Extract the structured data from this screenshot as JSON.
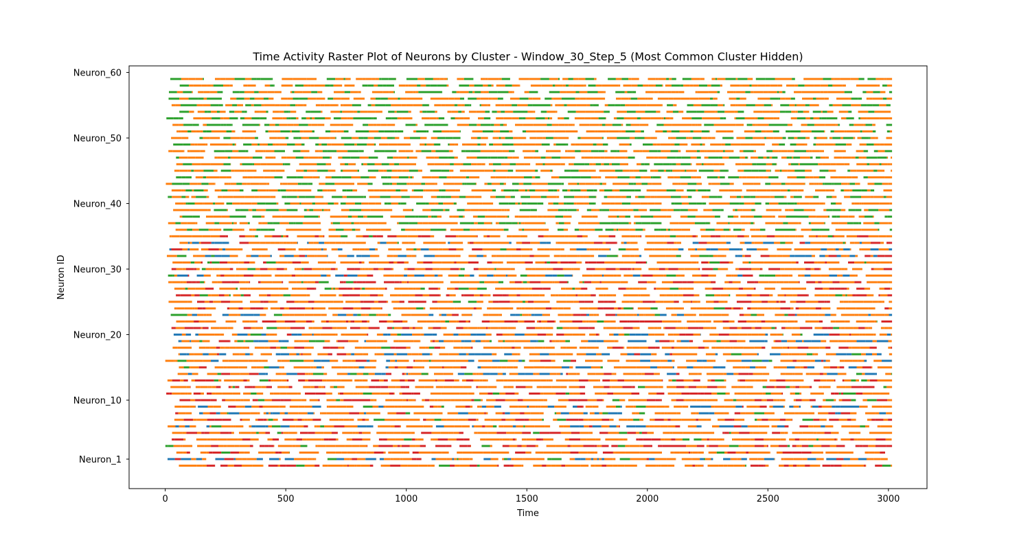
{
  "chart_data": {
    "type": "raster",
    "title": "Time Activity Raster Plot of Neurons by Cluster - Window_30_Step_5 (Most Common Cluster Hidden)",
    "xlabel": "Time",
    "ylabel": "Neuron ID",
    "xlim": [
      -150,
      3160
    ],
    "ylim": [
      -3.5,
      61
    ],
    "x_ticks": [
      0,
      500,
      1000,
      1500,
      2000,
      2500,
      3000
    ],
    "x_tick_labels": [
      "0",
      "500",
      "1000",
      "1500",
      "2000",
      "2500",
      "3000"
    ],
    "y_ticks": [
      1,
      10,
      20,
      30,
      40,
      50,
      60
    ],
    "y_tick_labels": [
      "Neuron_1",
      "Neuron_10",
      "Neuron_20",
      "Neuron_30",
      "Neuron_40",
      "Neuron_50",
      "Neuron_60"
    ],
    "neuron_rows": {
      "first": 0,
      "last": 59
    },
    "time_range": [
      0,
      3015
    ],
    "grid": false,
    "legend": "none",
    "cluster_colors": {
      "orange": "#ff7f0e",
      "blue": "#1f77b4",
      "red": "#d62728",
      "green": "#2ca02c"
    },
    "note_colors_share": {
      "orange": 0.86,
      "blue_lower_rows": 0.06,
      "red": 0.05,
      "green": 0.03
    }
  }
}
